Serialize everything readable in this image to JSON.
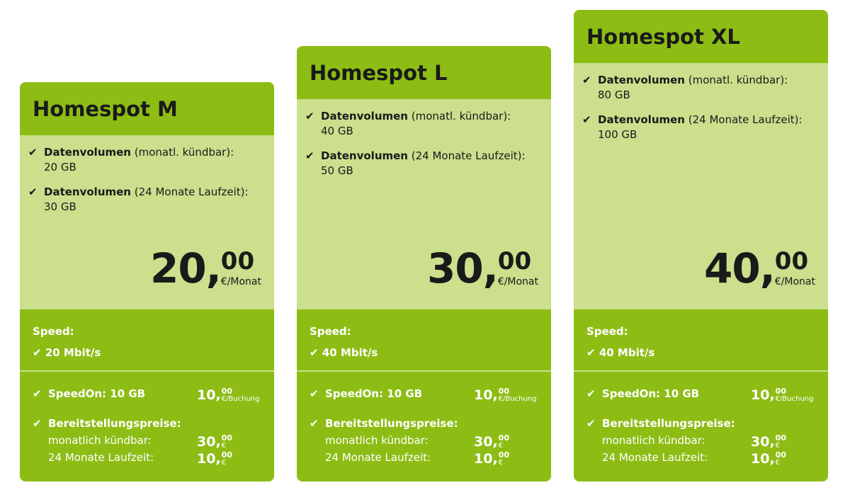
{
  "colors": {
    "header": "#8dbd15",
    "body": "#cbdf8d",
    "text": "#1a1a1a"
  },
  "plans": [
    {
      "title": "Homespot M",
      "f1_bold": "Datenvolumen",
      "f1_rest": " (monatl. kündbar):",
      "f1_val": "20 GB",
      "f2_bold": "Datenvolumen",
      "f2_rest": " (24 Monate Laufzeit):",
      "f2_val": "30 GB",
      "price_int": "20,",
      "price_cents": "00",
      "price_unit": "€/Monat",
      "speed_label": "Speed:",
      "speed_val": "20 Mbit/s",
      "speedon": "SpeedOn: 10 GB",
      "speedon_int": "10,",
      "speedon_cents": "00",
      "speedon_unit": "€/Buchung",
      "setup": "Bereitstellungspreise:",
      "setup_m": "monatlich kündbar:",
      "setup_m_int": "30,",
      "setup_m_cents": "00",
      "setup_24": "24 Monate Laufzeit:",
      "setup_24_int": "10,",
      "setup_24_cents": "00",
      "euro": "€"
    },
    {
      "title": "Homespot L",
      "f1_bold": "Datenvolumen",
      "f1_rest": " (monatl. kündbar):",
      "f1_val": "40 GB",
      "f2_bold": "Datenvolumen",
      "f2_rest": " (24 Monate Laufzeit):",
      "f2_val": "50 GB",
      "price_int": "30,",
      "price_cents": "00",
      "price_unit": "€/Monat",
      "speed_label": "Speed:",
      "speed_val": "40 Mbit/s",
      "speedon": "SpeedOn: 10 GB",
      "speedon_int": "10,",
      "speedon_cents": "00",
      "speedon_unit": "€/Buchung",
      "setup": "Bereitstellungspreise:",
      "setup_m": "monatlich kündbar:",
      "setup_m_int": "30,",
      "setup_m_cents": "00",
      "setup_24": "24 Monate Laufzeit:",
      "setup_24_int": "10,",
      "setup_24_cents": "00",
      "euro": "€"
    },
    {
      "title": "Homespot XL",
      "f1_bold": "Datenvolumen",
      "f1_rest": " (monatl. kündbar):",
      "f1_val": "80 GB",
      "f2_bold": "Datenvolumen",
      "f2_rest": " (24 Monate Laufzeit):",
      "f2_val": "100 GB",
      "price_int": "40,",
      "price_cents": "00",
      "price_unit": "€/Monat",
      "speed_label": "Speed:",
      "speed_val": "40 Mbit/s",
      "speedon": "SpeedOn: 10 GB",
      "speedon_int": "10,",
      "speedon_cents": "00",
      "speedon_unit": "€/Buchung",
      "setup": "Bereitstellungspreise:",
      "setup_m": "monatlich kündbar:",
      "setup_m_int": "30,",
      "setup_m_cents": "00",
      "setup_24": "24 Monate Laufzeit:",
      "setup_24_int": "10,",
      "setup_24_cents": "00",
      "euro": "€"
    }
  ],
  "check": "✔"
}
